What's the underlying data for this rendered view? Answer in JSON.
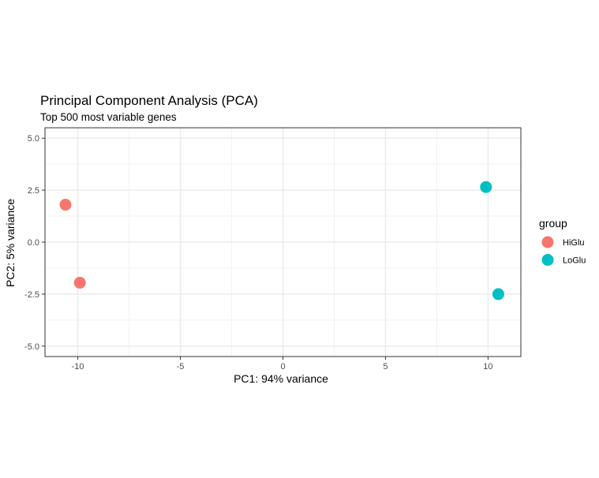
{
  "chart_data": {
    "type": "scatter",
    "title": "Principal Component Analysis (PCA)",
    "subtitle": "Top 500 most variable genes",
    "xlabel": "PC1: 94% variance",
    "ylabel": "PC2: 5% variance",
    "xlim": [
      -11.6,
      11.6
    ],
    "ylim": [
      -5.5,
      5.5
    ],
    "xticks": [
      -10,
      -5,
      0,
      5,
      10
    ],
    "xtick_labels": [
      "-10",
      "-5",
      "0",
      "5",
      "10"
    ],
    "yticks": [
      5.0,
      2.5,
      0.0,
      -2.5,
      -5.0
    ],
    "ytick_labels": [
      "5.0",
      "2.5",
      "0.0",
      "-2.5",
      "-5.0"
    ],
    "grid": true,
    "legend": {
      "title": "group",
      "placement": "right"
    },
    "series": [
      {
        "name": "HiGlu",
        "color": "#f8766d",
        "points": [
          {
            "x": -10.6,
            "y": 1.8
          },
          {
            "x": -9.9,
            "y": -1.95
          }
        ]
      },
      {
        "name": "LoGlu",
        "color": "#00bfc4",
        "points": [
          {
            "x": 9.9,
            "y": 2.65
          },
          {
            "x": 10.5,
            "y": -2.5
          }
        ]
      }
    ]
  }
}
